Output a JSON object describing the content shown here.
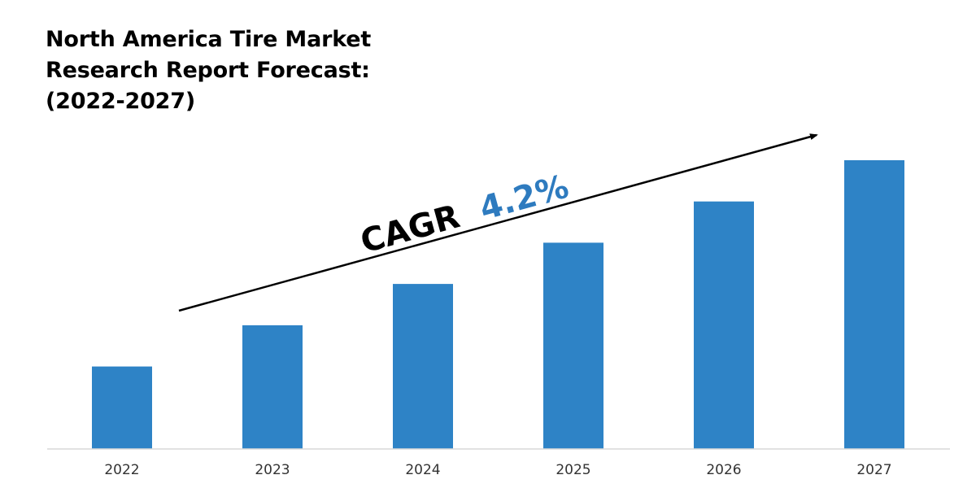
{
  "colors": {
    "bar": "#2e83c6",
    "cagr_value": "#2e7bbf",
    "arrow": "#000000",
    "axis": "#d9d9d9"
  },
  "chart_data": {
    "type": "bar",
    "title_lines": [
      "North America Tire Market",
      "Research Report Forecast:",
      "(2022-2027)"
    ],
    "categories": [
      "2022",
      "2023",
      "2024",
      "2025",
      "2026",
      "2027"
    ],
    "values": [
      100,
      150,
      200,
      250,
      300,
      350
    ],
    "ylim": [
      0,
      350
    ],
    "y_axis_visible": false,
    "grid": false,
    "legend": "none",
    "annotation": {
      "label": "CAGR",
      "value": "4.2%"
    }
  }
}
